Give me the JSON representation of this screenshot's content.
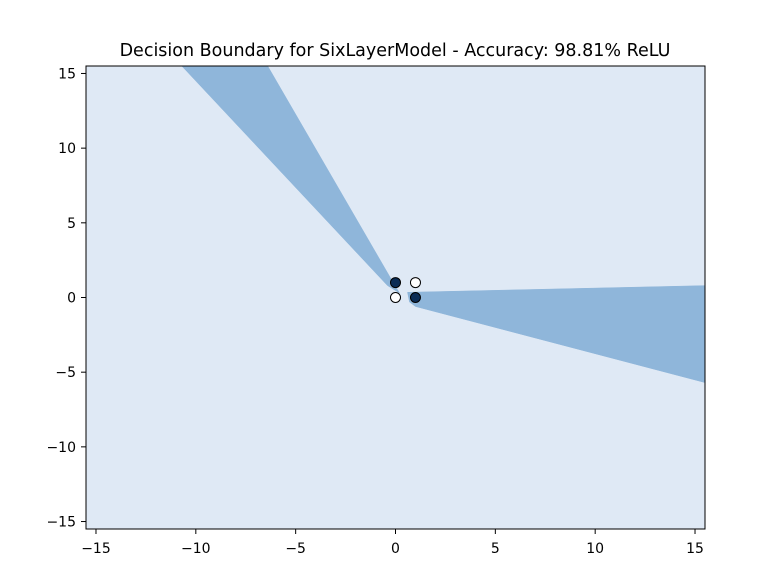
{
  "chart_data": {
    "type": "contour",
    "title": "Decision Boundary for SixLayerModel - Accuracy: 98.81% ReLU",
    "xlabel": "",
    "ylabel": "",
    "xlim": [
      -15.5,
      15.5
    ],
    "ylim": [
      -15.5,
      15.5
    ],
    "xticks": [
      -15,
      -10,
      -5,
      0,
      5,
      10,
      15
    ],
    "yticks": [
      -15,
      -10,
      -5,
      0,
      5,
      10,
      15
    ],
    "xtick_labels": [
      "−15",
      "−10",
      "−5",
      "0",
      "5",
      "10",
      "15"
    ],
    "ytick_labels": [
      "−15",
      "−10",
      "−5",
      "0",
      "5",
      "10",
      "15"
    ],
    "grid": false,
    "colors": {
      "background_class": "#dfe9f5",
      "positive_class": "#8fb6da",
      "point_class_0": "#ffffff",
      "point_class_1": "#0b2c55"
    },
    "regions": [
      {
        "class": 1,
        "polygon": [
          [
            -10.7,
            15.5
          ],
          [
            -6.4,
            15.5
          ],
          [
            -0.2,
            1.2
          ],
          [
            0.2,
            0.3
          ],
          [
            -0.4,
            0.8
          ]
        ]
      },
      {
        "class": 1,
        "polygon": [
          [
            0.6,
            0.35
          ],
          [
            15.5,
            0.8
          ],
          [
            15.5,
            -5.7
          ],
          [
            1.0,
            -0.6
          ],
          [
            0.7,
            -0.3
          ]
        ]
      }
    ],
    "points": [
      {
        "x": 0,
        "y": 0,
        "class": 0
      },
      {
        "x": 0,
        "y": 1,
        "class": 1
      },
      {
        "x": 1,
        "y": 0,
        "class": 1
      },
      {
        "x": 1,
        "y": 1,
        "class": 0
      }
    ]
  }
}
